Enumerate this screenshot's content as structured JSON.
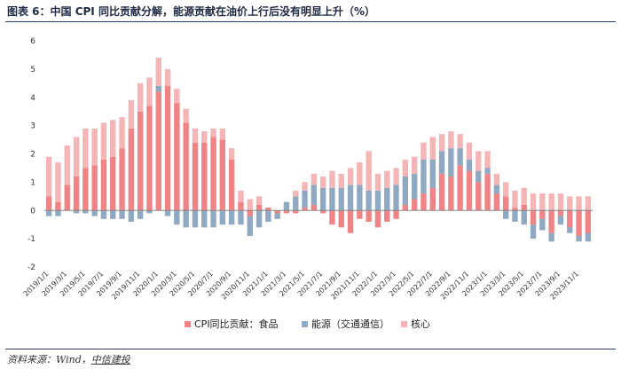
{
  "title": "图表 6：中国 CPI 同比贡献分解，能源贡献在油价上行后没有明显上升（%）",
  "source": {
    "prefix": "资料来源：Wind，",
    "brand": "中信建投"
  },
  "colors": {
    "food": "#ef8385",
    "energy": "#8fa9c3",
    "core": "#f4b5b6",
    "axis": "#888888"
  },
  "chart_data": {
    "type": "bar",
    "stacked": true,
    "title": "图表 6：中国 CPI 同比贡献分解，能源贡献在油价上行后没有明显上升（%）",
    "ylim": [
      -2,
      6
    ],
    "yticks": [
      -2,
      -1,
      0,
      1,
      2,
      3,
      4,
      5,
      6
    ],
    "legend_position": "bottom",
    "categories": [
      "2019/1/1",
      "2019/2/1",
      "2019/3/1",
      "2019/4/1",
      "2019/5/1",
      "2019/6/1",
      "2019/7/1",
      "2019/8/1",
      "2019/9/1",
      "2019/10/1",
      "2019/11/1",
      "2019/12/1",
      "2020/1/1",
      "2020/2/1",
      "2020/3/1",
      "2020/4/1",
      "2020/5/1",
      "2020/6/1",
      "2020/7/1",
      "2020/8/1",
      "2020/9/1",
      "2020/10/1",
      "2020/11/1",
      "2020/12/1",
      "2021/1/1",
      "2021/2/1",
      "2021/3/1",
      "2021/4/1",
      "2021/5/1",
      "2021/6/1",
      "2021/7/1",
      "2021/8/1",
      "2021/9/1",
      "2021/10/1",
      "2021/11/1",
      "2021/12/1",
      "2022/1/1",
      "2022/2/1",
      "2022/3/1",
      "2022/4/1",
      "2022/5/1",
      "2022/6/1",
      "2022/7/1",
      "2022/8/1",
      "2022/9/1",
      "2022/10/1",
      "2022/11/1",
      "2022/12/1",
      "2023/1/1",
      "2023/2/1",
      "2023/3/1",
      "2023/4/1",
      "2023/5/1",
      "2023/6/1",
      "2023/7/1",
      "2023/8/1",
      "2023/9/1",
      "2023/10/1",
      "2023/11/1",
      "2023/12/1"
    ],
    "xtick_labels": [
      "2019/1/1",
      "2019/3/1",
      "2019/5/1",
      "2019/7/1",
      "2019/9/1",
      "2019/11/1",
      "2020/1/1",
      "2020/3/1",
      "2020/5/1",
      "2020/7/1",
      "2020/9/1",
      "2020/11/1",
      "2021/1/1",
      "2021/3/1",
      "2021/5/1",
      "2021/7/1",
      "2021/9/1",
      "2021/11/1",
      "2022/1/1",
      "2022/3/1",
      "2022/5/1",
      "2022/7/1",
      "2022/9/1",
      "2022/11/1",
      "2023/1/1",
      "2023/3/1",
      "2023/5/1",
      "2023/7/1",
      "2023/9/1",
      "2023/11/1"
    ],
    "series": [
      {
        "name": "CPI同比贡献：食品",
        "color_key": "food",
        "values": [
          0.5,
          0.3,
          0.9,
          1.2,
          1.5,
          1.6,
          1.8,
          1.9,
          2.2,
          2.9,
          3.5,
          3.7,
          4.2,
          4.4,
          3.8,
          3.1,
          2.4,
          2.4,
          2.6,
          2.5,
          1.8,
          0.3,
          -0.2,
          0.2,
          0.1,
          -0.1,
          -0.1,
          -0.1,
          0.1,
          0.2,
          -0.1,
          -0.5,
          -0.6,
          -0.8,
          -0.3,
          -0.4,
          -0.6,
          -0.4,
          -0.3,
          0.2,
          0.4,
          0.6,
          0.8,
          1.3,
          1.2,
          1.6,
          1.4,
          1.0,
          1.3,
          0.6,
          0.5,
          0.1,
          0.2,
          -0.5,
          -0.3,
          -0.8,
          -0.2,
          -0.6,
          -0.9,
          -0.8
        ]
      },
      {
        "name": "能源（交通通信）",
        "color_key": "energy",
        "values": [
          -0.2,
          -0.2,
          0.0,
          -0.1,
          -0.1,
          -0.2,
          -0.3,
          -0.3,
          -0.3,
          -0.4,
          -0.3,
          -0.1,
          0.2,
          -0.2,
          -0.5,
          -0.6,
          -0.6,
          -0.6,
          -0.6,
          -0.5,
          -0.5,
          -0.5,
          -0.7,
          -0.6,
          -0.4,
          -0.2,
          0.3,
          0.5,
          0.6,
          0.7,
          0.8,
          0.8,
          0.8,
          0.9,
          0.9,
          0.7,
          0.7,
          0.8,
          0.9,
          1.0,
          0.9,
          1.2,
          1.0,
          0.8,
          1.0,
          0.6,
          0.4,
          0.4,
          0.2,
          0.3,
          -0.3,
          -0.4,
          -0.5,
          -0.5,
          -0.4,
          -0.3,
          -0.3,
          -0.2,
          -0.2,
          -0.3
        ]
      },
      {
        "name": "核心",
        "color_key": "core",
        "values": [
          1.4,
          1.4,
          1.4,
          1.4,
          1.4,
          1.3,
          1.3,
          1.3,
          1.1,
          1.0,
          1.0,
          1.0,
          1.0,
          0.6,
          0.5,
          0.5,
          0.5,
          0.4,
          0.3,
          0.4,
          0.4,
          0.4,
          0.4,
          0.3,
          0.0,
          0.0,
          0.0,
          0.2,
          0.3,
          0.4,
          0.4,
          0.6,
          0.5,
          0.6,
          0.8,
          1.4,
          0.6,
          0.6,
          0.6,
          0.6,
          0.6,
          0.6,
          0.8,
          0.6,
          0.6,
          0.5,
          0.6,
          0.7,
          0.6,
          0.4,
          0.5,
          0.6,
          0.6,
          0.6,
          0.6,
          0.6,
          0.6,
          0.5,
          0.5,
          0.5
        ]
      }
    ]
  }
}
